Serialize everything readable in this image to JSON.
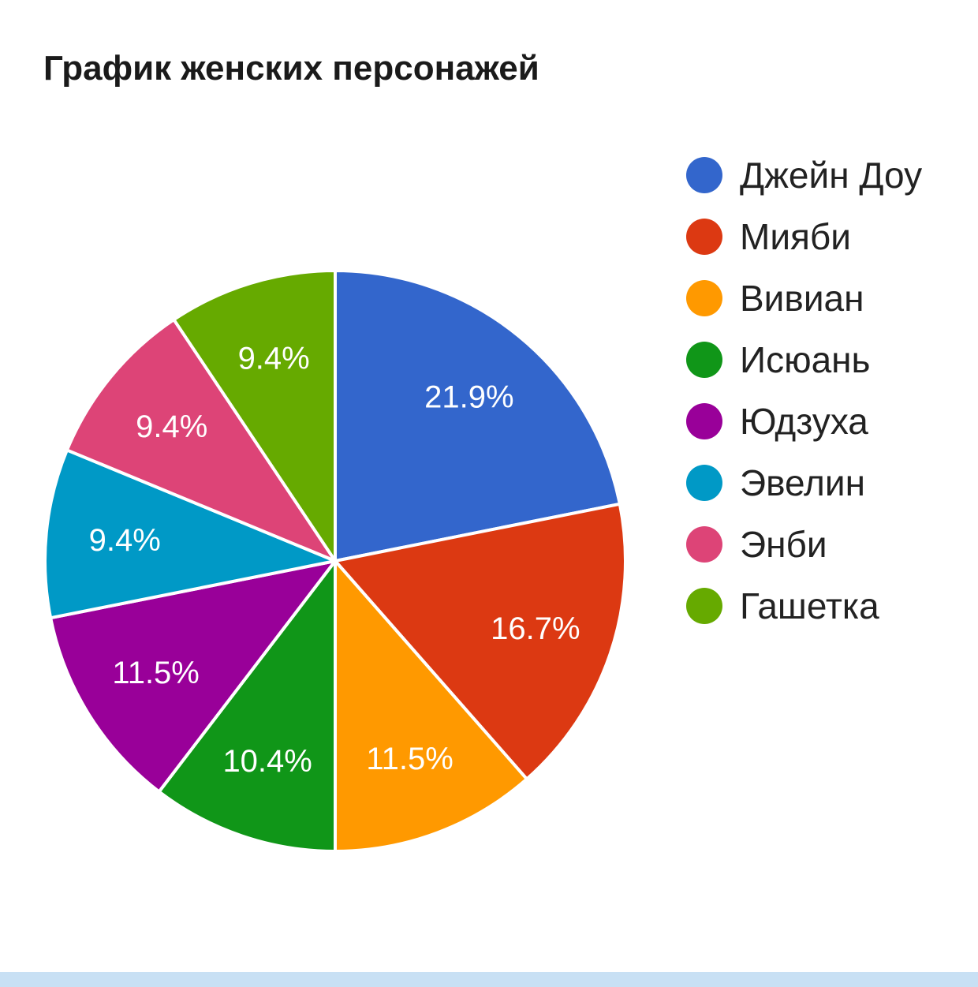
{
  "chart_data": {
    "type": "pie",
    "title": "График женских персонажей",
    "legend_position": "right",
    "slices": [
      {
        "label": "Джейн Доу",
        "value": 21.9,
        "display": "21.9%",
        "color": "#3366cc"
      },
      {
        "label": "Мияби",
        "value": 16.7,
        "display": "16.7%",
        "color": "#dc3912"
      },
      {
        "label": "Вивиан",
        "value": 11.5,
        "display": "11.5%",
        "color": "#ff9900"
      },
      {
        "label": "Исюань",
        "value": 10.4,
        "display": "10.4%",
        "color": "#109618"
      },
      {
        "label": "Юдзуха",
        "value": 11.5,
        "display": "11.5%",
        "color": "#990099"
      },
      {
        "label": "Эвелин",
        "value": 9.4,
        "display": "9.4%",
        "color": "#0099c6"
      },
      {
        "label": "Энби",
        "value": 9.4,
        "display": "9.4%",
        "color": "#dd4477"
      },
      {
        "label": "Гашетка",
        "value": 9.4,
        "display": "9.4%",
        "color": "#66aa00"
      }
    ]
  },
  "bottom_bar_color": "#c8e0f4"
}
